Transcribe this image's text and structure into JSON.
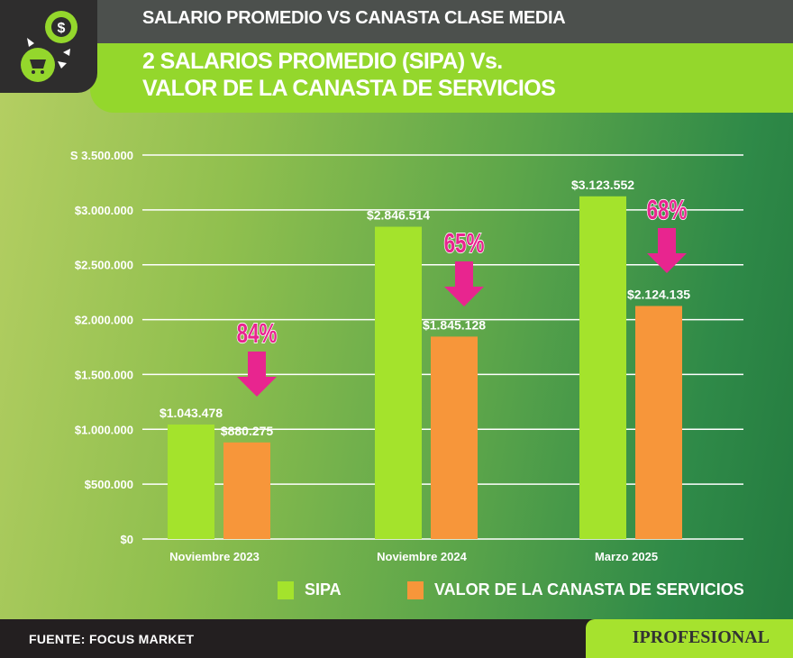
{
  "header": {
    "top_title": "SALARIO PROMEDIO VS CANASTA CLASE MEDIA",
    "title_line1": "2 SALARIOS PROMEDIO (SIPA) Vs.",
    "title_line2": "VALOR DE LA CANASTA DE SERVICIOS"
  },
  "footer": {
    "source": "FUENTE: FOCUS MARKET",
    "brand": "IPROFESIONAL"
  },
  "colors": {
    "sipa": "#a4e32c",
    "canasta": "#f7963a",
    "arrow": "#e8258f"
  },
  "chart_data": {
    "type": "bar",
    "title": "2 SALARIOS PROMEDIO (SIPA) Vs. VALOR DE LA CANASTA DE SERVICIOS",
    "categories": [
      "Noviembre 2023",
      "Noviembre 2024",
      "Marzo 2025"
    ],
    "series": [
      {
        "name": "SIPA",
        "values": [
          1043478,
          2846514,
          3123552
        ],
        "labels": [
          "$1.043.478",
          "$2.846.514",
          "$3.123.552"
        ]
      },
      {
        "name": "VALOR DE LA CANASTA DE SERVICIOS",
        "values": [
          880275,
          1845128,
          2124135
        ],
        "labels": [
          "$880.275",
          "$1.845.128",
          "$2.124.135"
        ]
      }
    ],
    "annotations": [
      "84%",
      "65%",
      "68%"
    ],
    "yticks": [
      0,
      500000,
      1000000,
      1500000,
      2000000,
      2500000,
      3000000,
      3500000
    ],
    "ytick_labels": [
      "$0",
      "$500.000",
      "$1.000.000",
      "$1.500.000",
      "$2.000.000",
      "$2.500.000",
      "$3.000.000",
      "S 3.500.000"
    ],
    "ylim": [
      0,
      3500000
    ],
    "grid": true,
    "legend": "bottom"
  }
}
